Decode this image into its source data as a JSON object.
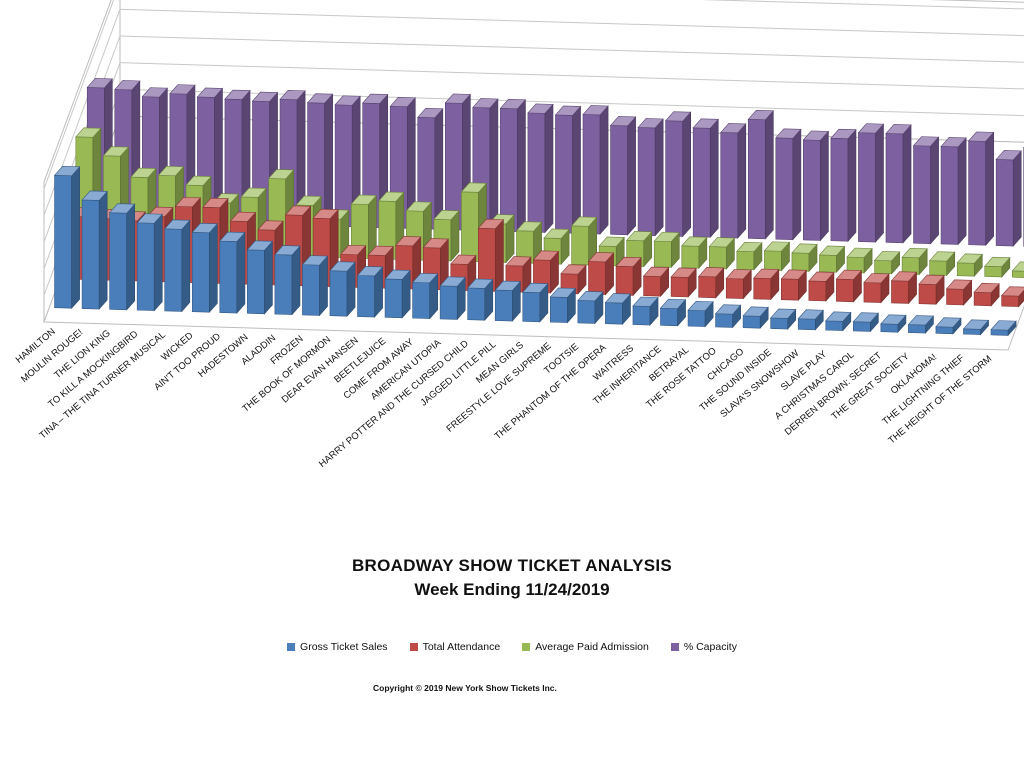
{
  "chart_data": {
    "type": "bar",
    "title": "BROADWAY SHOW TICKET ANALYSIS",
    "subtitle": "Week Ending 11/24/2019",
    "categories": [
      "HAMILTON",
      "MOULIN ROUGE!",
      "THE LION KING",
      "TO KILL A MOCKINGBIRD",
      "TINA – THE TINA TURNER MUSICAL",
      "WICKED",
      "AIN'T TOO PROUD",
      "HADESTOWN",
      "ALADDIN",
      "FROZEN",
      "THE BOOK OF MORMON",
      "DEAR EVAN HANSEN",
      "BEETLEJUICE",
      "COME FROM AWAY",
      "AMERICAN UTOPIA",
      "HARRY POTTER AND THE CURSED CHILD",
      "JAGGED LITTLE PILL",
      "MEAN GIRLS",
      "FREESTYLE LOVE SUPREME",
      "TOOTSIE",
      "THE PHANTOM OF THE OPERA",
      "WAITRESS",
      "THE INHERITANCE",
      "BETRAYAL",
      "THE ROSE TATTOO",
      "CHICAGO",
      "THE SOUND INSIDE",
      "SLAVA'S SNOWSHOW",
      "SLAVE PLAY",
      "A CHRISTMAS CAROL",
      "DERREN BROWN: SECRET",
      "THE GREAT SOCIETY",
      "OKLAHOMA!",
      "THE LIGHTNING THIEF",
      "THE HEIGHT OF THE STORM"
    ],
    "series": [
      {
        "name": "Gross Ticket Sales",
        "color": "#4a7ebb",
        "values": [
          100,
          82,
          73,
          66,
          62,
          60,
          54,
          48,
          45,
          38,
          34,
          31,
          29,
          27,
          25,
          24,
          23,
          22,
          19,
          17,
          16,
          14,
          13,
          12,
          10,
          9,
          8,
          8,
          7,
          7,
          6,
          6,
          5,
          4,
          4
        ]
      },
      {
        "name": "Total Attendance",
        "color": "#be4b48",
        "values": [
          48,
          47,
          46,
          50,
          58,
          58,
          48,
          42,
          54,
          52,
          25,
          25,
          33,
          32,
          20,
          48,
          20,
          25,
          15,
          25,
          22,
          15,
          15,
          16,
          15,
          16,
          16,
          15,
          17,
          15,
          17,
          15,
          12,
          10,
          8
        ]
      },
      {
        "name": "Average Paid Admission",
        "color": "#98b954",
        "values": [
          88,
          74,
          58,
          60,
          53,
          40,
          45,
          60,
          40,
          30,
          42,
          45,
          38,
          32,
          54,
          30,
          25,
          20,
          30,
          15,
          20,
          20,
          17,
          17,
          14,
          15,
          14,
          13,
          12,
          10,
          13,
          11,
          10,
          8,
          5
        ]
      },
      {
        "name": "% Capacity",
        "color": "#7d60a0",
        "values": [
          104,
          103,
          98,
          101,
          99,
          98,
          97,
          99,
          97,
          96,
          98,
          96,
          88,
          100,
          97,
          97,
          94,
          93,
          94,
          86,
          85,
          91,
          86,
          83,
          94,
          80,
          79,
          81,
          86,
          86,
          77,
          77,
          82,
          68,
          78
        ]
      }
    ],
    "legend_position": "bottom",
    "grid": true
  },
  "copyright": "Copyright © 2019 New York Show Tickets Inc."
}
